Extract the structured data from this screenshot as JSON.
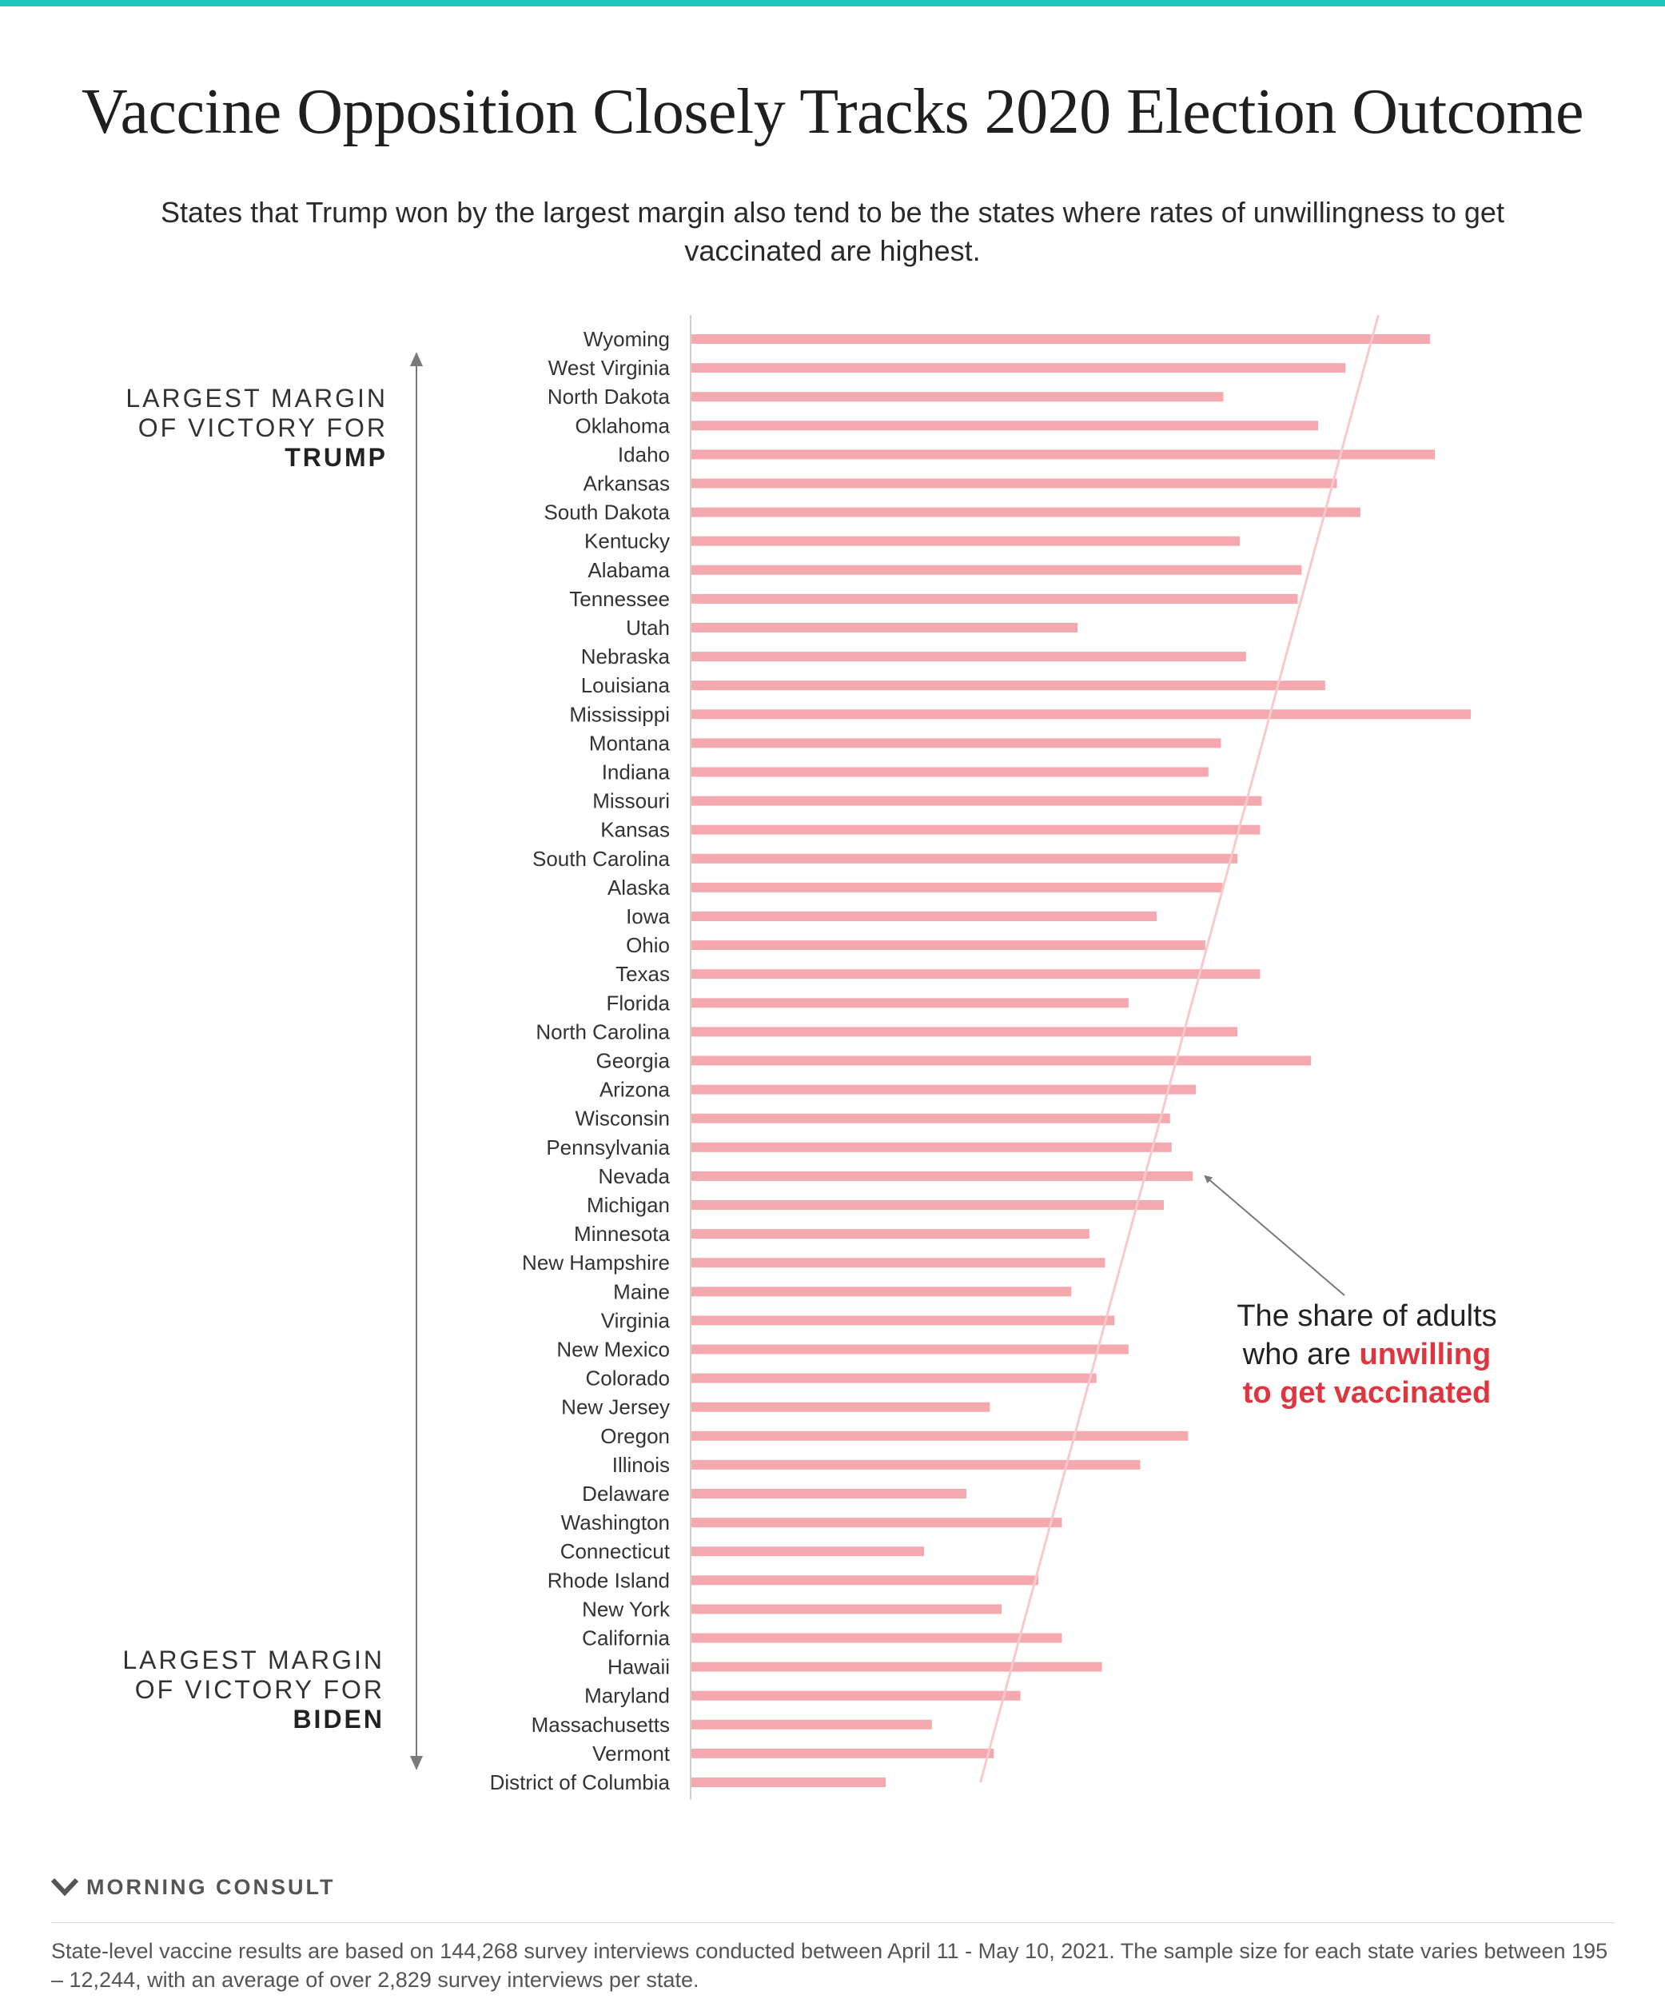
{
  "colors": {
    "top_bar": "#1ec8c0",
    "bar": "#f4a9ae",
    "trend_line": "#f7c9cc",
    "arrow": "#7a7a7a",
    "highlight": "#e0353f"
  },
  "header": {
    "title": "Vaccine Opposition Closely Tracks 2020 Election Outcome",
    "subtitle": "States that Trump won by the largest margin also tend to be the states where rates of unwillingness to get vaccinated are highest."
  },
  "side_labels": {
    "trump_line1": "LARGEST MARGIN",
    "trump_line2": "OF VICTORY FOR",
    "trump_line3": "TRUMP",
    "biden_line1": "LARGEST MARGIN",
    "biden_line2": "OF VICTORY FOR",
    "biden_line3": "BIDEN"
  },
  "annotation": {
    "line1": "The share of adults",
    "line2_plain": "who are ",
    "line2_highlight": "unwilling",
    "line3_highlight": "to get vaccinated"
  },
  "brand": {
    "icon": "morning-consult-logo-icon",
    "name": "MORNING CONSULT"
  },
  "footnote": "State-level vaccine results are based on 144,268 survey interviews conducted between April 11 - May 10, 2021. The sample size for each state varies between 195 – 12,244, with an average of over 2,829 survey interviews per state.",
  "chart_data": {
    "type": "bar",
    "orientation": "horizontal",
    "title": "Vaccine Opposition Closely Tracks 2020 Election Outcome",
    "xlabel": "",
    "ylabel": "",
    "grid": false,
    "legend": "none",
    "value_scale_max": 100,
    "categories": [
      "Wyoming",
      "West Virginia",
      "North Dakota",
      "Oklahoma",
      "Idaho",
      "Arkansas",
      "South Dakota",
      "Kentucky",
      "Alabama",
      "Tennessee",
      "Utah",
      "Nebraska",
      "Louisiana",
      "Mississippi",
      "Montana",
      "Indiana",
      "Missouri",
      "Kansas",
      "South Carolina",
      "Alaska",
      "Iowa",
      "Ohio",
      "Texas",
      "Florida",
      "North Carolina",
      "Georgia",
      "Arizona",
      "Wisconsin",
      "Pennsylvania",
      "Nevada",
      "Michigan",
      "Minnesota",
      "New Hampshire",
      "Maine",
      "Virginia",
      "New Mexico",
      "Colorado",
      "New Jersey",
      "Oregon",
      "Illinois",
      "Delaware",
      "Washington",
      "Connecticut",
      "Rhode Island",
      "New York",
      "California",
      "Hawaii",
      "Maryland",
      "Massachusetts",
      "Vermont",
      "District of Columbia"
    ],
    "values": [
      94.3,
      83.5,
      67.9,
      80.0,
      94.9,
      82.4,
      85.4,
      70.0,
      77.9,
      77.4,
      49.3,
      70.8,
      80.9,
      99.5,
      67.6,
      66.0,
      72.8,
      72.6,
      69.7,
      67.8,
      59.4,
      65.6,
      72.6,
      55.8,
      69.7,
      79.1,
      64.4,
      61.1,
      61.3,
      64.0,
      60.3,
      50.8,
      52.8,
      48.5,
      54.0,
      55.8,
      51.7,
      38.1,
      63.4,
      57.3,
      35.1,
      47.3,
      29.7,
      44.3,
      39.6,
      47.3,
      52.4,
      42.0,
      30.7,
      38.6,
      24.8
    ],
    "series": [
      {
        "values_ref": "values"
      }
    ],
    "trend_line": {
      "from_value": 87.8,
      "to_value": 37.0
    }
  }
}
